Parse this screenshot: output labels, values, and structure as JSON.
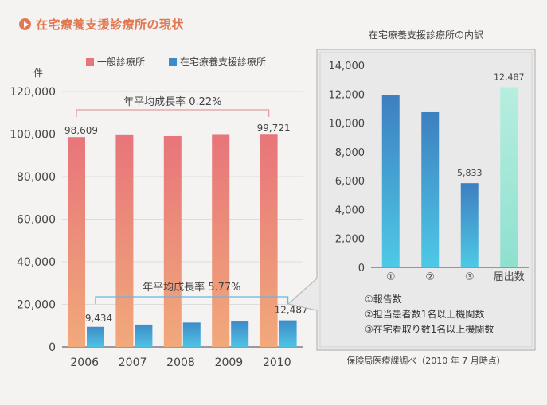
{
  "page": {
    "title": "在宅療養支援診療所の現状",
    "colors": {
      "general_top": "#e8757a",
      "general_bottom": "#f1a97a",
      "home_top": "#3d8cc8",
      "home_bottom": "#4fc3e4",
      "accent_title": "#e07750",
      "bracket_red": "#e39ba0",
      "bracket_blue": "#68b6de",
      "panel_bg": "#e9e9e9",
      "panel_border": "#b9b9b9"
    }
  },
  "chart_data": [
    {
      "type": "bar",
      "title": "",
      "unit_label": "件",
      "categories": [
        "2006",
        "2007",
        "2008",
        "2009",
        "2010"
      ],
      "series": [
        {
          "name": "一般診療所",
          "values": [
            98609,
            99500,
            99080,
            99640,
            99721
          ]
        },
        {
          "name": "在宅療養支援診療所",
          "values": [
            9434,
            10500,
            11450,
            11950,
            12487
          ]
        }
      ],
      "ylim": [
        0,
        120000
      ],
      "yticks": [
        "0",
        "20,000",
        "40,000",
        "60,000",
        "80,000",
        "100,000",
        "120,000"
      ],
      "data_labels": {
        "general_2006": "98,609",
        "general_2010": "99,721",
        "home_2006": "9,434",
        "home_2010": "12,487"
      },
      "annotations": {
        "general_growth": "年平均成長率 0.22%",
        "home_growth": "年平均成長率 5.77%"
      },
      "legend_position": "top"
    },
    {
      "type": "bar",
      "title": "在宅療養支援診療所の内訳",
      "categories": [
        "①",
        "②",
        "③",
        "届出数"
      ],
      "values": [
        11950,
        10750,
        5833,
        12487
      ],
      "ylim": [
        0,
        14000
      ],
      "yticks": [
        "0",
        "2,000",
        "4,000",
        "6,000",
        "8,000",
        "10,000",
        "12,000",
        "14,000"
      ],
      "data_labels": {
        "c3": "5,833",
        "c4": "12,487"
      },
      "notes": [
        "①報告数",
        "②担当患者数1名以上機関数",
        "③在宅看取り数1名以上機関数"
      ],
      "source": "保険局医療課調べ（2010 年 7 月時点）"
    }
  ]
}
